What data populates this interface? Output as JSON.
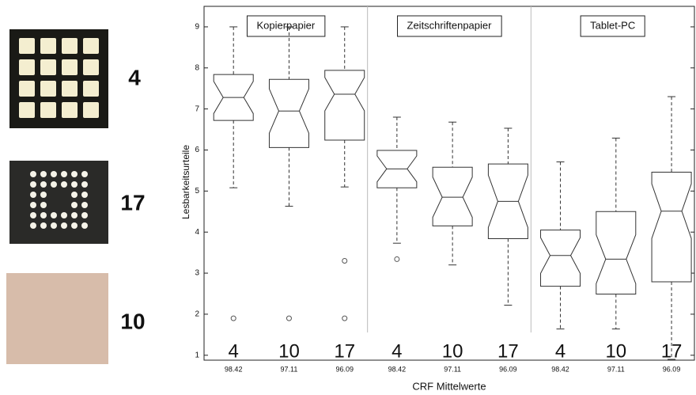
{
  "samples": [
    {
      "label": "4"
    },
    {
      "label": "17"
    },
    {
      "label": "10"
    }
  ],
  "chart_data": {
    "type": "box",
    "y_label": "Lesbarkeitsurteile",
    "x_label": "CRF Mittelwerte",
    "groups": [
      "Kopierpapier",
      "Zeitschriftenpapier",
      "Tablet-PC"
    ],
    "categories": [
      "98.42",
      "97.11",
      "96.09",
      "98.42",
      "97.11",
      "96.09",
      "98.42",
      "97.11",
      "96.09"
    ],
    "box_labels": [
      "4",
      "10",
      "17",
      "4",
      "10",
      "17",
      "4",
      "10",
      "17"
    ],
    "boxes": [
      {
        "whisker_low": 5.08,
        "q1": 6.72,
        "median": 7.28,
        "q3": 7.84,
        "whisker_high": 9.0,
        "outliers": [
          1.9
        ]
      },
      {
        "whisker_low": 4.63,
        "q1": 6.06,
        "median": 6.95,
        "q3": 7.72,
        "whisker_high": 9.0,
        "outliers": [
          1.9
        ]
      },
      {
        "whisker_low": 5.1,
        "q1": 6.24,
        "median": 7.36,
        "q3": 7.94,
        "whisker_high": 9.0,
        "outliers": [
          3.3,
          1.9
        ]
      },
      {
        "whisker_low": 3.73,
        "q1": 5.08,
        "median": 5.54,
        "q3": 5.99,
        "whisker_high": 6.8,
        "outliers": [
          3.34
        ]
      },
      {
        "whisker_low": 3.2,
        "q1": 4.15,
        "median": 4.85,
        "q3": 5.58,
        "whisker_high": 6.68,
        "outliers": []
      },
      {
        "whisker_low": 2.22,
        "q1": 3.84,
        "median": 4.75,
        "q3": 5.66,
        "whisker_high": 6.53,
        "outliers": []
      },
      {
        "whisker_low": 1.64,
        "q1": 2.68,
        "median": 3.43,
        "q3": 4.05,
        "whisker_high": 5.71,
        "outliers": []
      },
      {
        "whisker_low": 1.64,
        "q1": 2.49,
        "median": 3.34,
        "q3": 4.5,
        "whisker_high": 6.29,
        "outliers": []
      },
      {
        "whisker_low": 0.9,
        "q1": 2.79,
        "median": 4.51,
        "q3": 5.46,
        "whisker_high": 7.3,
        "outliers": []
      }
    ],
    "ylim": [
      0.88,
      9.5
    ],
    "yticks": [
      1,
      2,
      3,
      4,
      5,
      6,
      7,
      8,
      9
    ]
  }
}
